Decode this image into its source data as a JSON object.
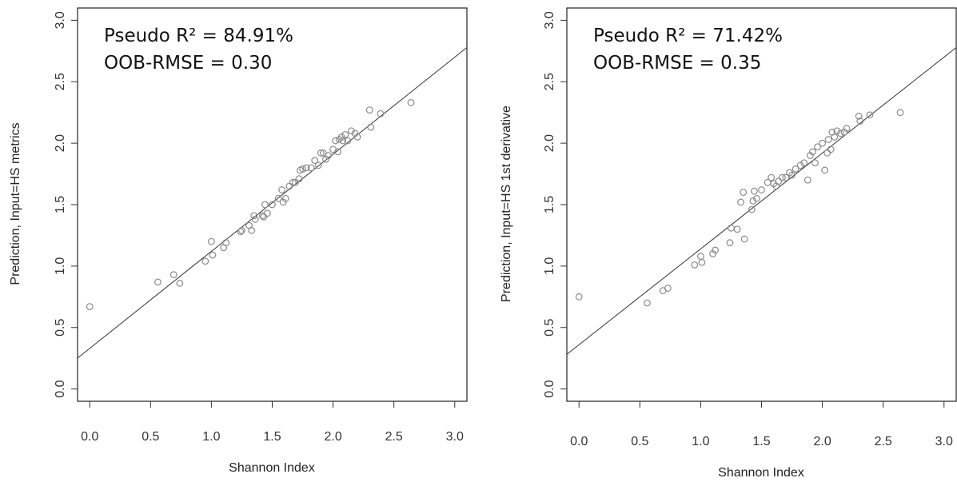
{
  "chart_data": [
    {
      "type": "scatter",
      "title": "",
      "xlabel": "Shannon Index",
      "ylabel": "Prediction, Input=HS metrics",
      "xlim": [
        -0.1,
        3.1
      ],
      "ylim": [
        -0.1,
        3.1
      ],
      "xticks": [
        "0.0",
        "0.5",
        "1.0",
        "1.5",
        "2.0",
        "2.5",
        "3.0"
      ],
      "yticks": [
        "0.0",
        "0.5",
        "1.0",
        "1.5",
        "2.0",
        "2.5",
        "3.0"
      ],
      "annotations": [
        "Pseudo R² = 84.91%",
        "OOB-RMSE = 0.30"
      ],
      "fit_line": {
        "intercept": 0.33,
        "slope": 0.79
      },
      "grid": false,
      "points": [
        [
          0.0,
          0.67
        ],
        [
          0.56,
          0.87
        ],
        [
          0.69,
          0.93
        ],
        [
          0.74,
          0.86
        ],
        [
          0.95,
          1.04
        ],
        [
          1.0,
          1.2
        ],
        [
          1.01,
          1.09
        ],
        [
          1.1,
          1.15
        ],
        [
          1.12,
          1.19
        ],
        [
          1.24,
          1.28
        ],
        [
          1.25,
          1.29
        ],
        [
          1.31,
          1.33
        ],
        [
          1.33,
          1.29
        ],
        [
          1.35,
          1.41
        ],
        [
          1.36,
          1.38
        ],
        [
          1.42,
          1.41
        ],
        [
          1.43,
          1.4
        ],
        [
          1.44,
          1.5
        ],
        [
          1.46,
          1.43
        ],
        [
          1.5,
          1.5
        ],
        [
          1.55,
          1.55
        ],
        [
          1.58,
          1.62
        ],
        [
          1.59,
          1.52
        ],
        [
          1.61,
          1.55
        ],
        [
          1.64,
          1.65
        ],
        [
          1.67,
          1.68
        ],
        [
          1.69,
          1.68
        ],
        [
          1.72,
          1.71
        ],
        [
          1.73,
          1.78
        ],
        [
          1.75,
          1.79
        ],
        [
          1.78,
          1.8
        ],
        [
          1.82,
          1.8
        ],
        [
          1.85,
          1.86
        ],
        [
          1.88,
          1.82
        ],
        [
          1.9,
          1.92
        ],
        [
          1.92,
          1.92
        ],
        [
          1.94,
          1.87
        ],
        [
          1.96,
          1.9
        ],
        [
          2.0,
          1.95
        ],
        [
          2.02,
          2.02
        ],
        [
          2.04,
          1.93
        ],
        [
          2.05,
          2.03
        ],
        [
          2.07,
          2.05
        ],
        [
          2.08,
          2.02
        ],
        [
          2.1,
          2.07
        ],
        [
          2.12,
          2.02
        ],
        [
          2.15,
          2.1
        ],
        [
          2.18,
          2.08
        ],
        [
          2.2,
          2.05
        ],
        [
          2.3,
          2.27
        ],
        [
          2.31,
          2.13
        ],
        [
          2.39,
          2.24
        ],
        [
          2.64,
          2.33
        ]
      ]
    },
    {
      "type": "scatter",
      "title": "",
      "xlabel": "Shannon Index",
      "ylabel": "Prediction, Input=HS 1st derivative",
      "xlim": [
        -0.1,
        3.1
      ],
      "ylim": [
        -0.1,
        3.1
      ],
      "xticks": [
        "0.0",
        "0.5",
        "1.0",
        "1.5",
        "2.0",
        "2.5",
        "3.0"
      ],
      "yticks": [
        "0.0",
        "0.5",
        "1.0",
        "1.5",
        "2.0",
        "2.5",
        "3.0"
      ],
      "annotations": [
        "Pseudo R² = 71.42%",
        "OOB-RMSE = 0.35"
      ],
      "fit_line": {
        "intercept": 0.36,
        "slope": 0.78
      },
      "grid": false,
      "points": [
        [
          0.0,
          0.75
        ],
        [
          0.56,
          0.7
        ],
        [
          0.69,
          0.8
        ],
        [
          0.73,
          0.82
        ],
        [
          0.95,
          1.01
        ],
        [
          1.0,
          1.08
        ],
        [
          1.01,
          1.03
        ],
        [
          1.1,
          1.1
        ],
        [
          1.12,
          1.13
        ],
        [
          1.24,
          1.19
        ],
        [
          1.25,
          1.31
        ],
        [
          1.3,
          1.3
        ],
        [
          1.33,
          1.52
        ],
        [
          1.35,
          1.6
        ],
        [
          1.36,
          1.22
        ],
        [
          1.42,
          1.46
        ],
        [
          1.43,
          1.53
        ],
        [
          1.44,
          1.61
        ],
        [
          1.46,
          1.55
        ],
        [
          1.5,
          1.62
        ],
        [
          1.55,
          1.68
        ],
        [
          1.58,
          1.72
        ],
        [
          1.6,
          1.67
        ],
        [
          1.62,
          1.65
        ],
        [
          1.64,
          1.69
        ],
        [
          1.67,
          1.72
        ],
        [
          1.7,
          1.72
        ],
        [
          1.73,
          1.76
        ],
        [
          1.75,
          1.74
        ],
        [
          1.78,
          1.79
        ],
        [
          1.82,
          1.82
        ],
        [
          1.85,
          1.84
        ],
        [
          1.88,
          1.7
        ],
        [
          1.9,
          1.9
        ],
        [
          1.92,
          1.93
        ],
        [
          1.94,
          1.84
        ],
        [
          1.96,
          1.97
        ],
        [
          2.0,
          2.0
        ],
        [
          2.02,
          1.78
        ],
        [
          2.04,
          1.92
        ],
        [
          2.05,
          2.03
        ],
        [
          2.07,
          1.95
        ],
        [
          2.08,
          2.09
        ],
        [
          2.1,
          2.05
        ],
        [
          2.12,
          2.1
        ],
        [
          2.15,
          2.08
        ],
        [
          2.18,
          2.09
        ],
        [
          2.2,
          2.12
        ],
        [
          2.3,
          2.22
        ],
        [
          2.31,
          2.18
        ],
        [
          2.39,
          2.23
        ],
        [
          2.64,
          2.25
        ]
      ]
    }
  ]
}
